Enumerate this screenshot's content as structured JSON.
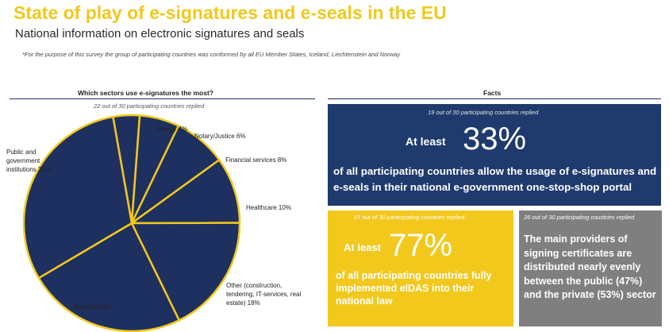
{
  "header": {
    "title": "State of play of e-signatures and e-seals in the EU",
    "subtitle": "National information on electronic signatures and seals",
    "footnote": "*For the purpose of this survey the group of participating countries was conformed by all EU Member States, Iceland, Liechtenstein and Norway"
  },
  "colors": {
    "title": "#f2c81d",
    "slice_fill": "#1e3060",
    "slice_stroke": "#f2c81d",
    "blue_box": "#1f3a6d",
    "yellow_box": "#f2c81d",
    "grey_box": "#7f7f7f"
  },
  "sectors": {
    "heading": "Which sectors use e-signatures the most?",
    "replied": "22 out of 30 participating countries replied"
  },
  "facts": {
    "heading": "Facts",
    "blue": {
      "replied": "19 out of 30  participating countries replied",
      "at_least": "At least",
      "value": "33%",
      "text": "of all participating countries allow the usage of e-signatures and e-seals in their national e-government one-stop-shop portal"
    },
    "yellow": {
      "replied": "27 out of 30 participating countries replied",
      "at_least": "At least",
      "value": "77%",
      "text": "of all participating countries fully implemented eIDAS into their national law"
    },
    "grey": {
      "replied": "26 out of 30 participating countries replied",
      "text": "The main providers of signing certificates are distributed nearly evenly between the public (47%) and the private (53%) sector"
    }
  },
  "chart_data": {
    "type": "pie",
    "slices": [
      {
        "label": "Energy",
        "value": 4,
        "text": "Energy 4%"
      },
      {
        "label": "Notary/Justice",
        "value": 6,
        "text": "Notary/Justice 6%"
      },
      {
        "label": "Financial services",
        "value": 8,
        "text": "Financial services 8%"
      },
      {
        "label": "Healthcare",
        "value": 10,
        "text": "Healthcare 10%"
      },
      {
        "label": "Other (construction, tendering, IT-services, real estate)",
        "value": 18,
        "text": "Other (construction, tendering, IT-services, real estate) 18%"
      },
      {
        "label": "Banking",
        "value": 24,
        "text": "Banking  24%"
      },
      {
        "label": "Public and government institutions",
        "value": 31,
        "text": "Public and government institutions  31%"
      }
    ]
  }
}
